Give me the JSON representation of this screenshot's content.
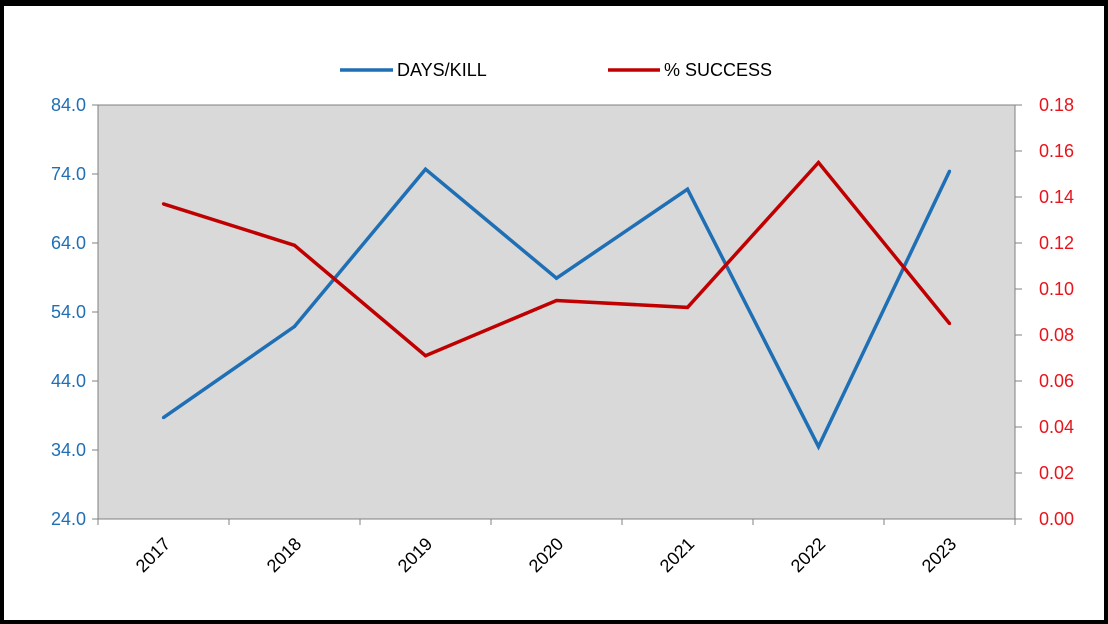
{
  "chart_data": {
    "type": "line",
    "title": "",
    "xlabel": "",
    "ylabel": "",
    "categories": [
      "2017",
      "2018",
      "2019",
      "2020",
      "2021",
      "2022",
      "2023"
    ],
    "series": [
      {
        "name": "DAYS/KILL",
        "axis": "left",
        "color": "#1f6fb5",
        "values": [
          38.7,
          51.9,
          74.7,
          58.9,
          71.8,
          34.5,
          74.4
        ]
      },
      {
        "name": "% SUCCESS",
        "axis": "right",
        "color": "#c00000",
        "values": [
          0.137,
          0.119,
          0.071,
          0.095,
          0.092,
          0.155,
          0.085
        ]
      }
    ],
    "y_left": {
      "range": [
        24,
        84
      ],
      "ticks": [
        "24.0",
        "34.0",
        "44.0",
        "54.0",
        "64.0",
        "74.0",
        "84.0"
      ],
      "color": "#1f6fb5"
    },
    "y_right": {
      "range": [
        0,
        0.18
      ],
      "ticks": [
        "0.00",
        "0.02",
        "0.04",
        "0.06",
        "0.08",
        "0.10",
        "0.12",
        "0.14",
        "0.16",
        "0.18"
      ],
      "color": "#e8141b"
    },
    "plot_background": "#d9d9d9",
    "grid": false,
    "legend_position": "top-center"
  }
}
